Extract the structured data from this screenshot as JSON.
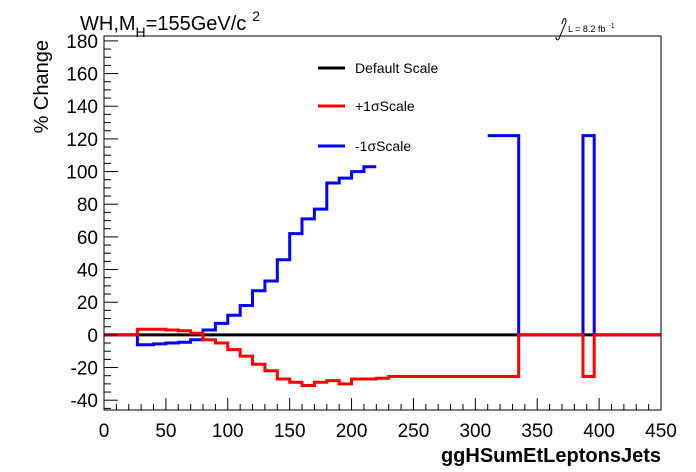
{
  "chart_data": {
    "type": "line",
    "title": "WH,M_H=155GeV/c^2",
    "title_parts": {
      "main": "WH,M",
      "sub": "H",
      "rest": "=155GeV/c",
      "sup": "2"
    },
    "lumi_label": {
      "text": "L = 8.2 fb",
      "sup": "-1"
    },
    "xlabel": "ggHSumEtLeptonsJets",
    "ylabel": "% Change",
    "xlim": [
      0,
      450
    ],
    "ylim": [
      -46,
      183
    ],
    "xticks": [
      0,
      50,
      100,
      150,
      200,
      250,
      300,
      350,
      400,
      450
    ],
    "yticks": [
      -40,
      -20,
      0,
      20,
      40,
      60,
      80,
      100,
      120,
      140,
      160,
      180
    ],
    "grid": false,
    "legend_position": "top-center",
    "series": [
      {
        "name": "Default Scale",
        "color": "#000000",
        "bins": [
          {
            "x0": 0,
            "x1": 450,
            "y": 0
          }
        ]
      },
      {
        "name": "+1σScale",
        "color": "#ff0000",
        "bins": [
          {
            "x0": 0,
            "x1": 27,
            "y": 0
          },
          {
            "x0": 27,
            "x1": 40,
            "y": 3.5
          },
          {
            "x0": 40,
            "x1": 50,
            "y": 3.5
          },
          {
            "x0": 50,
            "x1": 60,
            "y": 3
          },
          {
            "x0": 60,
            "x1": 70,
            "y": 2.5
          },
          {
            "x0": 70,
            "x1": 80,
            "y": 1
          },
          {
            "x0": 80,
            "x1": 90,
            "y": -3
          },
          {
            "x0": 90,
            "x1": 100,
            "y": -5
          },
          {
            "x0": 100,
            "x1": 110,
            "y": -9
          },
          {
            "x0": 110,
            "x1": 120,
            "y": -13
          },
          {
            "x0": 120,
            "x1": 130,
            "y": -18
          },
          {
            "x0": 130,
            "x1": 140,
            "y": -22
          },
          {
            "x0": 140,
            "x1": 150,
            "y": -27
          },
          {
            "x0": 150,
            "x1": 160,
            "y": -29
          },
          {
            "x0": 160,
            "x1": 170,
            "y": -31
          },
          {
            "x0": 170,
            "x1": 180,
            "y": -29
          },
          {
            "x0": 180,
            "x1": 190,
            "y": -28
          },
          {
            "x0": 190,
            "x1": 200,
            "y": -30
          },
          {
            "x0": 200,
            "x1": 210,
            "y": -27
          },
          {
            "x0": 210,
            "x1": 220,
            "y": -27
          },
          {
            "x0": 220,
            "x1": 230,
            "y": -26.5
          },
          {
            "x0": 230,
            "x1": 240,
            "y": -25.5
          },
          {
            "x0": 240,
            "x1": 335,
            "y": -25.5
          },
          {
            "x0": 335,
            "x1": 387,
            "y": 0
          },
          {
            "x0": 387,
            "x1": 396,
            "y": -25.5
          },
          {
            "x0": 396,
            "x1": 450,
            "y": 0
          }
        ]
      },
      {
        "name": "-1σScale",
        "color": "#0000ff",
        "bins": [
          {
            "x0": 0,
            "x1": 27,
            "y": 0
          },
          {
            "x0": 27,
            "x1": 40,
            "y": -6
          },
          {
            "x0": 40,
            "x1": 50,
            "y": -5.5
          },
          {
            "x0": 50,
            "x1": 60,
            "y": -5
          },
          {
            "x0": 60,
            "x1": 70,
            "y": -4.5
          },
          {
            "x0": 70,
            "x1": 80,
            "y": -3
          },
          {
            "x0": 80,
            "x1": 90,
            "y": 3
          },
          {
            "x0": 90,
            "x1": 100,
            "y": 7
          },
          {
            "x0": 100,
            "x1": 110,
            "y": 12
          },
          {
            "x0": 110,
            "x1": 120,
            "y": 18
          },
          {
            "x0": 120,
            "x1": 130,
            "y": 27
          },
          {
            "x0": 130,
            "x1": 140,
            "y": 33
          },
          {
            "x0": 140,
            "x1": 150,
            "y": 46
          },
          {
            "x0": 150,
            "x1": 160,
            "y": 62
          },
          {
            "x0": 160,
            "x1": 170,
            "y": 71
          },
          {
            "x0": 170,
            "x1": 180,
            "y": 77
          },
          {
            "x0": 180,
            "x1": 190,
            "y": 93
          },
          {
            "x0": 190,
            "x1": 200,
            "y": 96
          },
          {
            "x0": 200,
            "x1": 210,
            "y": 100
          },
          {
            "x0": 210,
            "x1": 220,
            "y": 103
          },
          {
            "x0": 310,
            "x1": 335,
            "y": 122
          },
          {
            "x0": 335,
            "x1": 387,
            "y": 0
          },
          {
            "x0": 387,
            "x1": 396,
            "y": 122
          },
          {
            "x0": 396,
            "x1": 450,
            "y": 0
          }
        ]
      }
    ]
  }
}
